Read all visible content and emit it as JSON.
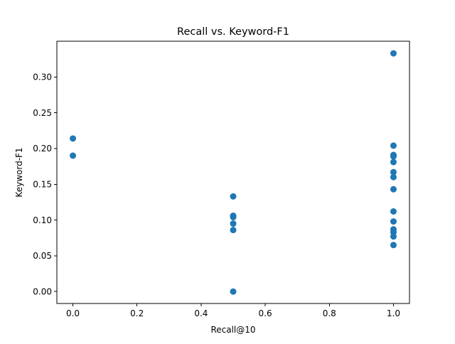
{
  "chart_data": {
    "type": "scatter",
    "title": "Recall vs. Keyword-F1",
    "xlabel": "Recall@10",
    "ylabel": "Keyword-F1",
    "xlim": [
      -0.05,
      1.05
    ],
    "ylim": [
      -0.0167,
      0.35
    ],
    "xticks": [
      0.0,
      0.2,
      0.4,
      0.6,
      0.8,
      1.0
    ],
    "xtick_labels": [
      "0.0",
      "0.2",
      "0.4",
      "0.6",
      "0.8",
      "1.0"
    ],
    "yticks": [
      0.0,
      0.05,
      0.1,
      0.15,
      0.2,
      0.25,
      0.3
    ],
    "ytick_labels": [
      "0.00",
      "0.05",
      "0.10",
      "0.15",
      "0.20",
      "0.25",
      "0.30"
    ],
    "grid": false,
    "marker_color": "#1f77b4",
    "points": [
      {
        "x": 0.0,
        "y": 0.214
      },
      {
        "x": 0.0,
        "y": 0.19
      },
      {
        "x": 0.5,
        "y": 0.133
      },
      {
        "x": 0.5,
        "y": 0.106
      },
      {
        "x": 0.5,
        "y": 0.104
      },
      {
        "x": 0.5,
        "y": 0.095
      },
      {
        "x": 0.5,
        "y": 0.086
      },
      {
        "x": 0.5,
        "y": 0.0
      },
      {
        "x": 1.0,
        "y": 0.333
      },
      {
        "x": 1.0,
        "y": 0.204
      },
      {
        "x": 1.0,
        "y": 0.191
      },
      {
        "x": 1.0,
        "y": 0.189
      },
      {
        "x": 1.0,
        "y": 0.181
      },
      {
        "x": 1.0,
        "y": 0.167
      },
      {
        "x": 1.0,
        "y": 0.16
      },
      {
        "x": 1.0,
        "y": 0.143
      },
      {
        "x": 1.0,
        "y": 0.112
      },
      {
        "x": 1.0,
        "y": 0.098
      },
      {
        "x": 1.0,
        "y": 0.087
      },
      {
        "x": 1.0,
        "y": 0.083
      },
      {
        "x": 1.0,
        "y": 0.077
      },
      {
        "x": 1.0,
        "y": 0.065
      }
    ]
  }
}
